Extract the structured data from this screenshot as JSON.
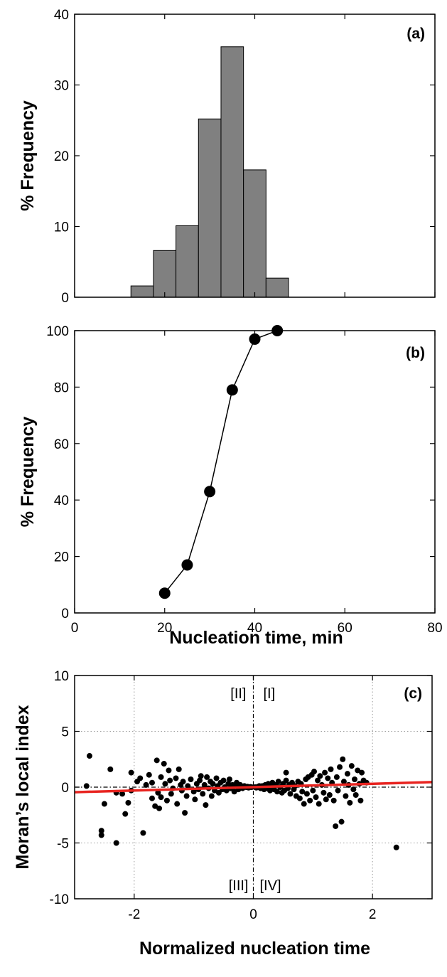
{
  "chart_data": [
    {
      "type": "bar",
      "panel_label": "(a)",
      "ylabel": "% Frequency",
      "xlim": [
        0,
        80
      ],
      "ylim": [
        0,
        40
      ],
      "xticks": [
        0,
        20,
        40,
        60,
        80
      ],
      "yticks": [
        0,
        10,
        20,
        30,
        40
      ],
      "ytick_labels": [
        "0",
        "10",
        "20",
        "30",
        "40"
      ],
      "bin_width": 5,
      "bins": [
        {
          "x0": 12.5,
          "value": 1.6
        },
        {
          "x0": 17.5,
          "value": 6.6
        },
        {
          "x0": 22.5,
          "value": 10.1
        },
        {
          "x0": 27.5,
          "value": 25.2
        },
        {
          "x0": 32.5,
          "value": 35.4
        },
        {
          "x0": 37.5,
          "value": 18.0
        },
        {
          "x0": 42.5,
          "value": 2.7
        }
      ],
      "bar_color": "#808080"
    },
    {
      "type": "line",
      "panel_label": "(b)",
      "ylabel": "% Frequency",
      "xlabel": "Nucleation time, min",
      "xlim": [
        0,
        80
      ],
      "ylim": [
        0,
        100
      ],
      "xticks": [
        0,
        20,
        40,
        60,
        80
      ],
      "xtick_labels": [
        "0",
        "20",
        "40",
        "60",
        "80"
      ],
      "yticks": [
        0,
        20,
        40,
        60,
        80,
        100
      ],
      "ytick_labels": [
        "0",
        "20",
        "40",
        "60",
        "80",
        "100"
      ],
      "x": [
        20,
        25,
        30,
        35,
        40,
        45
      ],
      "y": [
        7,
        17,
        43,
        79,
        97,
        100
      ]
    },
    {
      "type": "scatter",
      "panel_label": "(c)",
      "ylabel": "Moran’s local index",
      "xlabel": "Normalized nucleation time",
      "xlim": [
        -3,
        3
      ],
      "ylim": [
        -10,
        10
      ],
      "xticks": [
        -2,
        0,
        2
      ],
      "xtick_labels": [
        "-2",
        "0",
        "2"
      ],
      "yticks": [
        -10,
        -5,
        0,
        5,
        10
      ],
      "ytick_labels": [
        "-10",
        "-5",
        "0",
        "5",
        "10"
      ],
      "grid": true,
      "quadrant_labels": {
        "II": "[II]",
        "I": "[I]",
        "III": "[III]",
        "IV": "[IV]"
      },
      "fit_line": {
        "x": [
          -3,
          3
        ],
        "y": [
          -0.45,
          0.45
        ],
        "color": "#e8231f"
      },
      "points": [
        [
          -2.75,
          2.8
        ],
        [
          -2.8,
          0.1
        ],
        [
          -2.55,
          -3.9
        ],
        [
          -2.55,
          -4.3
        ],
        [
          -2.5,
          -1.5
        ],
        [
          -2.4,
          1.6
        ],
        [
          -2.3,
          -5.0
        ],
        [
          -2.3,
          -0.5
        ],
        [
          -2.2,
          -0.6
        ],
        [
          -2.15,
          -2.4
        ],
        [
          -2.1,
          -1.4
        ],
        [
          -2.05,
          1.3
        ],
        [
          -2.05,
          -0.3
        ],
        [
          -1.95,
          0.5
        ],
        [
          -1.9,
          0.8
        ],
        [
          -1.85,
          -4.1
        ],
        [
          -1.8,
          0.2
        ],
        [
          -1.75,
          1.1
        ],
        [
          -1.7,
          -1.0
        ],
        [
          -1.7,
          0.4
        ],
        [
          -1.65,
          -1.7
        ],
        [
          -1.62,
          2.4
        ],
        [
          -1.6,
          -0.5
        ],
        [
          -1.58,
          -1.9
        ],
        [
          -1.55,
          0.9
        ],
        [
          -1.55,
          -0.9
        ],
        [
          -1.5,
          2.1
        ],
        [
          -1.48,
          0.3
        ],
        [
          -1.45,
          -1.2
        ],
        [
          -1.42,
          1.5
        ],
        [
          -1.4,
          0.6
        ],
        [
          -1.38,
          -0.6
        ],
        [
          -1.35,
          -0.1
        ],
        [
          -1.3,
          0.8
        ],
        [
          -1.28,
          -1.5
        ],
        [
          -1.25,
          1.6
        ],
        [
          -1.22,
          0.2
        ],
        [
          -1.2,
          -0.3
        ],
        [
          -1.18,
          0.5
        ],
        [
          -1.15,
          -2.3
        ],
        [
          -1.12,
          -0.8
        ],
        [
          -1.1,
          0.1
        ],
        [
          -1.05,
          0.7
        ],
        [
          -1.0,
          -0.4
        ],
        [
          -0.98,
          -1.1
        ],
        [
          -0.95,
          0.3
        ],
        [
          -0.92,
          -0.2
        ],
        [
          -0.9,
          0.6
        ],
        [
          -0.88,
          1.0
        ],
        [
          -0.85,
          -0.6
        ],
        [
          -0.82,
          0.2
        ],
        [
          -0.8,
          -1.6
        ],
        [
          -0.78,
          0.9
        ],
        [
          -0.75,
          -0.1
        ],
        [
          -0.72,
          0.5
        ],
        [
          -0.7,
          -0.8
        ],
        [
          -0.68,
          0.3
        ],
        [
          -0.65,
          -0.3
        ],
        [
          -0.62,
          0.8
        ],
        [
          -0.6,
          0.1
        ],
        [
          -0.58,
          -0.5
        ],
        [
          -0.55,
          0.4
        ],
        [
          -0.52,
          -0.2
        ],
        [
          -0.5,
          0.6
        ],
        [
          -0.48,
          0.0
        ],
        [
          -0.45,
          -0.3
        ],
        [
          -0.42,
          0.3
        ],
        [
          -0.4,
          0.7
        ],
        [
          -0.38,
          -0.1
        ],
        [
          -0.35,
          0.2
        ],
        [
          -0.32,
          -0.4
        ],
        [
          -0.3,
          0.1
        ],
        [
          -0.28,
          0.4
        ],
        [
          -0.25,
          -0.2
        ],
        [
          -0.22,
          0.2
        ],
        [
          -0.2,
          0.0
        ],
        [
          -0.18,
          -0.1
        ],
        [
          -0.15,
          0.1
        ],
        [
          -0.12,
          0.0
        ],
        [
          -0.1,
          0.05
        ],
        [
          -0.08,
          -0.05
        ],
        [
          -0.05,
          0.02
        ],
        [
          -0.03,
          0.0
        ],
        [
          0.03,
          0.0
        ],
        [
          0.05,
          -0.05
        ],
        [
          0.08,
          0.05
        ],
        [
          0.1,
          0.1
        ],
        [
          0.12,
          -0.1
        ],
        [
          0.15,
          0.1
        ],
        [
          0.18,
          -0.2
        ],
        [
          0.2,
          0.2
        ],
        [
          0.22,
          -0.1
        ],
        [
          0.25,
          0.3
        ],
        [
          0.28,
          -0.3
        ],
        [
          0.3,
          0.1
        ],
        [
          0.32,
          0.4
        ],
        [
          0.35,
          -0.2
        ],
        [
          0.38,
          0.2
        ],
        [
          0.4,
          -0.4
        ],
        [
          0.42,
          0.5
        ],
        [
          0.45,
          0.0
        ],
        [
          0.48,
          -0.5
        ],
        [
          0.5,
          0.3
        ],
        [
          0.52,
          -0.3
        ],
        [
          0.55,
          1.3
        ],
        [
          0.55,
          0.6
        ],
        [
          0.58,
          -0.1
        ],
        [
          0.6,
          0.2
        ],
        [
          0.62,
          -0.6
        ],
        [
          0.65,
          0.4
        ],
        [
          0.68,
          -0.2
        ],
        [
          0.7,
          0.1
        ],
        [
          0.72,
          -0.8
        ],
        [
          0.75,
          0.5
        ],
        [
          0.78,
          -1.0
        ],
        [
          0.8,
          0.3
        ],
        [
          0.82,
          -0.4
        ],
        [
          0.85,
          -1.5
        ],
        [
          0.88,
          0.7
        ],
        [
          0.9,
          -0.6
        ],
        [
          0.92,
          0.9
        ],
        [
          0.95,
          -1.2
        ],
        [
          0.98,
          1.1
        ],
        [
          1.0,
          -0.3
        ],
        [
          1.02,
          1.4
        ],
        [
          1.05,
          -0.9
        ],
        [
          1.08,
          0.6
        ],
        [
          1.1,
          -1.5
        ],
        [
          1.12,
          1.0
        ],
        [
          1.15,
          0.2
        ],
        [
          1.18,
          -0.5
        ],
        [
          1.2,
          1.3
        ],
        [
          1.22,
          -1.1
        ],
        [
          1.25,
          0.8
        ],
        [
          1.28,
          -0.7
        ],
        [
          1.3,
          1.6
        ],
        [
          1.32,
          0.4
        ],
        [
          1.35,
          -1.2
        ],
        [
          1.38,
          -3.5
        ],
        [
          1.4,
          0.9
        ],
        [
          1.42,
          -0.3
        ],
        [
          1.45,
          1.8
        ],
        [
          1.48,
          -3.1
        ],
        [
          1.5,
          2.5
        ],
        [
          1.52,
          0.5
        ],
        [
          1.55,
          -0.8
        ],
        [
          1.58,
          1.2
        ],
        [
          1.6,
          0.2
        ],
        [
          1.62,
          -1.4
        ],
        [
          1.65,
          1.9
        ],
        [
          1.68,
          -0.2
        ],
        [
          1.7,
          0.7
        ],
        [
          1.72,
          -0.7
        ],
        [
          1.75,
          1.5
        ],
        [
          1.78,
          0.3
        ],
        [
          1.8,
          -1.2
        ],
        [
          1.82,
          1.3
        ],
        [
          1.85,
          0.6
        ],
        [
          1.9,
          0.4
        ],
        [
          2.4,
          -5.4
        ]
      ]
    }
  ]
}
